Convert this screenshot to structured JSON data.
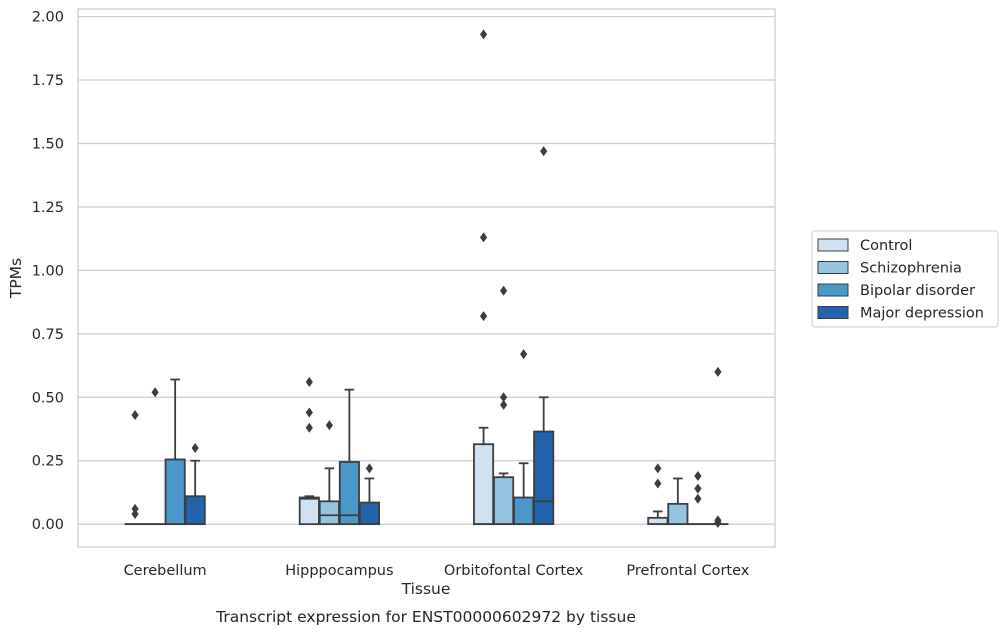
{
  "chart_data": {
    "type": "box",
    "xlabel": "Tissue",
    "ylabel": "TPMs",
    "caption": "Transcript expression for ENST00000602972 by tissue",
    "ylim": [
      -0.09,
      2.03
    ],
    "yticks": [
      "0.00",
      "0.25",
      "0.50",
      "0.75",
      "1.00",
      "1.25",
      "1.50",
      "1.75",
      "2.00"
    ],
    "ytick_values": [
      0,
      0.25,
      0.5,
      0.75,
      1.0,
      1.25,
      1.5,
      1.75,
      2.0
    ],
    "grid": true,
    "legend_position": "right",
    "categories": [
      "Cerebellum",
      "Hipppocampus",
      "Orbitofontal Cortex",
      "Prefrontal Cortex"
    ],
    "series": [
      {
        "name": "Control",
        "color": "#d0e1f2",
        "boxes": [
          {
            "q1": 0,
            "median": 0,
            "q3": 0,
            "whisker_low": 0,
            "whisker_high": 0,
            "outliers": [
              0.43,
              0.06,
              0.04
            ]
          },
          {
            "q1": 0,
            "median": 0.1,
            "q3": 0.105,
            "whisker_low": 0,
            "whisker_high": 0.11,
            "outliers": [
              0.56,
              0.44,
              0.38
            ]
          },
          {
            "q1": 0,
            "median": 0,
            "q3": 0.315,
            "whisker_low": 0,
            "whisker_high": 0.38,
            "outliers": [
              1.93,
              1.13,
              0.82
            ]
          },
          {
            "q1": 0,
            "median": 0,
            "q3": 0.025,
            "whisker_low": 0,
            "whisker_high": 0.05,
            "outliers": [
              0.22,
              0.16
            ]
          }
        ]
      },
      {
        "name": "Schizophrenia",
        "color": "#94c4df",
        "boxes": [
          {
            "q1": 0,
            "median": 0,
            "q3": 0,
            "whisker_low": 0,
            "whisker_high": 0,
            "outliers": [
              0.52
            ]
          },
          {
            "q1": 0,
            "median": 0.035,
            "q3": 0.09,
            "whisker_low": 0,
            "whisker_high": 0.22,
            "outliers": [
              0.39
            ]
          },
          {
            "q1": 0,
            "median": 0,
            "q3": 0.185,
            "whisker_low": 0,
            "whisker_high": 0.2,
            "outliers": [
              0.92,
              0.5,
              0.47
            ]
          },
          {
            "q1": 0,
            "median": 0,
            "q3": 0.08,
            "whisker_low": 0,
            "whisker_high": 0.18,
            "outliers": []
          }
        ]
      },
      {
        "name": "Bipolar disorder",
        "color": "#4a98c9",
        "boxes": [
          {
            "q1": 0,
            "median": 0,
            "q3": 0.255,
            "whisker_low": 0,
            "whisker_high": 0.57,
            "outliers": []
          },
          {
            "q1": 0,
            "median": 0.035,
            "q3": 0.245,
            "whisker_low": 0,
            "whisker_high": 0.53,
            "outliers": []
          },
          {
            "q1": 0,
            "median": 0,
            "q3": 0.105,
            "whisker_low": 0,
            "whisker_high": 0.24,
            "outliers": [
              0.67
            ]
          },
          {
            "q1": 0,
            "median": 0,
            "q3": 0,
            "whisker_low": 0,
            "whisker_high": 0,
            "outliers": [
              0.19,
              0.14,
              0.1
            ]
          }
        ]
      },
      {
        "name": "Major depression",
        "color": "#2164ab",
        "boxes": [
          {
            "q1": 0,
            "median": 0,
            "q3": 0.11,
            "whisker_low": 0,
            "whisker_high": 0.25,
            "outliers": [
              0.3
            ]
          },
          {
            "q1": 0,
            "median": 0,
            "q3": 0.085,
            "whisker_low": 0,
            "whisker_high": 0.18,
            "outliers": [
              0.22
            ]
          },
          {
            "q1": 0,
            "median": 0.09,
            "q3": 0.365,
            "whisker_low": 0,
            "whisker_high": 0.5,
            "outliers": [
              1.47
            ]
          },
          {
            "q1": 0,
            "median": 0,
            "q3": 0,
            "whisker_low": 0,
            "whisker_high": 0,
            "outliers": [
              0.6,
              0.015,
              0.005
            ]
          }
        ]
      }
    ]
  }
}
